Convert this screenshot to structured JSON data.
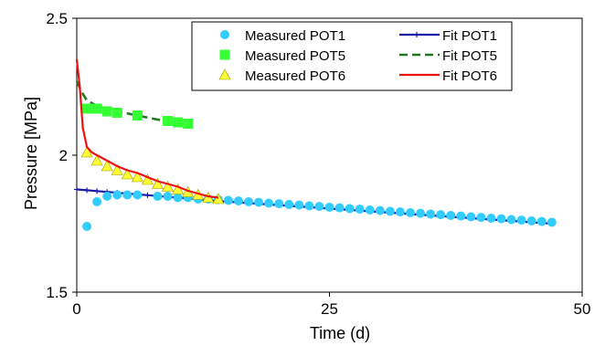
{
  "chart_data": {
    "type": "scatter",
    "title": "",
    "xlabel": "Time (d)",
    "ylabel": "Pressure [MPa]",
    "xlim": [
      0,
      50
    ],
    "ylim": [
      1.5,
      2.5
    ],
    "xticks": [
      0,
      25,
      50
    ],
    "yticks": [
      1.5,
      2.0,
      2.5
    ],
    "xtick_labels": [
      "0",
      "25",
      "50"
    ],
    "ytick_labels": [
      "1.5",
      "2",
      "2.5"
    ],
    "grid": false,
    "legend_position": "top-right",
    "series": [
      {
        "name": "Measured POT1",
        "kind": "marker",
        "marker": "circle",
        "color": "#33ccff",
        "x": [
          1,
          2,
          3,
          4,
          5,
          6,
          8,
          9,
          10,
          11,
          12,
          13,
          14,
          15,
          16,
          17,
          18,
          19,
          20,
          21,
          22,
          23,
          24,
          25,
          26,
          27,
          28,
          29,
          30,
          31,
          32,
          33,
          34,
          35,
          36,
          37,
          38,
          39,
          40,
          41,
          42,
          43,
          44,
          45,
          46,
          47
        ],
        "y": [
          1.74,
          1.83,
          1.85,
          1.855,
          1.855,
          1.855,
          1.85,
          1.85,
          1.845,
          1.845,
          1.84,
          1.84,
          1.838,
          1.835,
          1.833,
          1.83,
          1.828,
          1.825,
          1.823,
          1.82,
          1.818,
          1.815,
          1.813,
          1.81,
          1.808,
          1.805,
          1.803,
          1.8,
          1.798,
          1.795,
          1.793,
          1.79,
          1.788,
          1.785,
          1.783,
          1.78,
          1.778,
          1.775,
          1.773,
          1.77,
          1.768,
          1.765,
          1.763,
          1.76,
          1.758,
          1.755
        ]
      },
      {
        "name": "Measured POT5",
        "kind": "marker",
        "marker": "square",
        "color": "#33ff33",
        "x": [
          1,
          2,
          3,
          4,
          6,
          9,
          10,
          11
        ],
        "y": [
          2.17,
          2.17,
          2.16,
          2.155,
          2.145,
          2.125,
          2.12,
          2.115
        ]
      },
      {
        "name": "Measured POT6",
        "kind": "marker",
        "marker": "triangle",
        "color": "#ffff33",
        "x": [
          1,
          2,
          3,
          4,
          5,
          6,
          7,
          8,
          9,
          10,
          11,
          12,
          13,
          14
        ],
        "y": [
          2.01,
          1.98,
          1.96,
          1.945,
          1.93,
          1.92,
          1.91,
          1.895,
          1.885,
          1.875,
          1.865,
          1.855,
          1.845,
          1.84
        ]
      },
      {
        "name": "Fit POT1",
        "kind": "line-plus",
        "color": "#1a1aa8",
        "x": [
          0,
          1,
          2,
          3,
          4,
          5,
          6,
          7,
          8,
          9,
          10,
          11,
          12,
          13,
          14,
          15,
          16,
          17,
          18,
          19,
          20,
          21,
          22,
          23,
          24,
          25,
          26,
          27,
          28,
          29,
          30,
          31,
          32,
          33,
          34,
          35,
          36,
          37,
          38,
          39,
          40,
          41,
          42,
          43,
          44,
          45,
          46,
          47
        ],
        "y": [
          1.875,
          1.872,
          1.869,
          1.866,
          1.863,
          1.86,
          1.857,
          1.854,
          1.851,
          1.848,
          1.845,
          1.842,
          1.839,
          1.836,
          1.833,
          1.83,
          1.828,
          1.825,
          1.823,
          1.82,
          1.818,
          1.815,
          1.813,
          1.81,
          1.808,
          1.805,
          1.803,
          1.8,
          1.798,
          1.795,
          1.793,
          1.79,
          1.788,
          1.785,
          1.783,
          1.78,
          1.778,
          1.775,
          1.773,
          1.77,
          1.768,
          1.765,
          1.763,
          1.76,
          1.758,
          1.755,
          1.753,
          1.75
        ]
      },
      {
        "name": "Fit POT5",
        "kind": "dashed",
        "color": "#1f7a1f",
        "x": [
          0,
          0.5,
          1,
          1.5,
          2,
          3,
          4,
          6,
          8,
          10,
          11
        ],
        "y": [
          2.27,
          2.23,
          2.2,
          2.19,
          2.18,
          2.17,
          2.16,
          2.145,
          2.13,
          2.12,
          2.115
        ]
      },
      {
        "name": "Fit POT6",
        "kind": "solid",
        "color": "#ee1111",
        "x": [
          0,
          0.3,
          0.6,
          1,
          1.5,
          2,
          3,
          4,
          5,
          6,
          7,
          8,
          9,
          10,
          11,
          12,
          13,
          14
        ],
        "y": [
          2.35,
          2.25,
          2.1,
          2.03,
          2.01,
          2.0,
          1.98,
          1.96,
          1.945,
          1.935,
          1.92,
          1.905,
          1.895,
          1.885,
          1.87,
          1.86,
          1.85,
          1.845
        ]
      }
    ],
    "legend": {
      "left": [
        "Measured POT1",
        "Measured POT5",
        "Measured POT6"
      ],
      "right": [
        "Fit POT1",
        "Fit POT5",
        "Fit POT6"
      ]
    }
  }
}
